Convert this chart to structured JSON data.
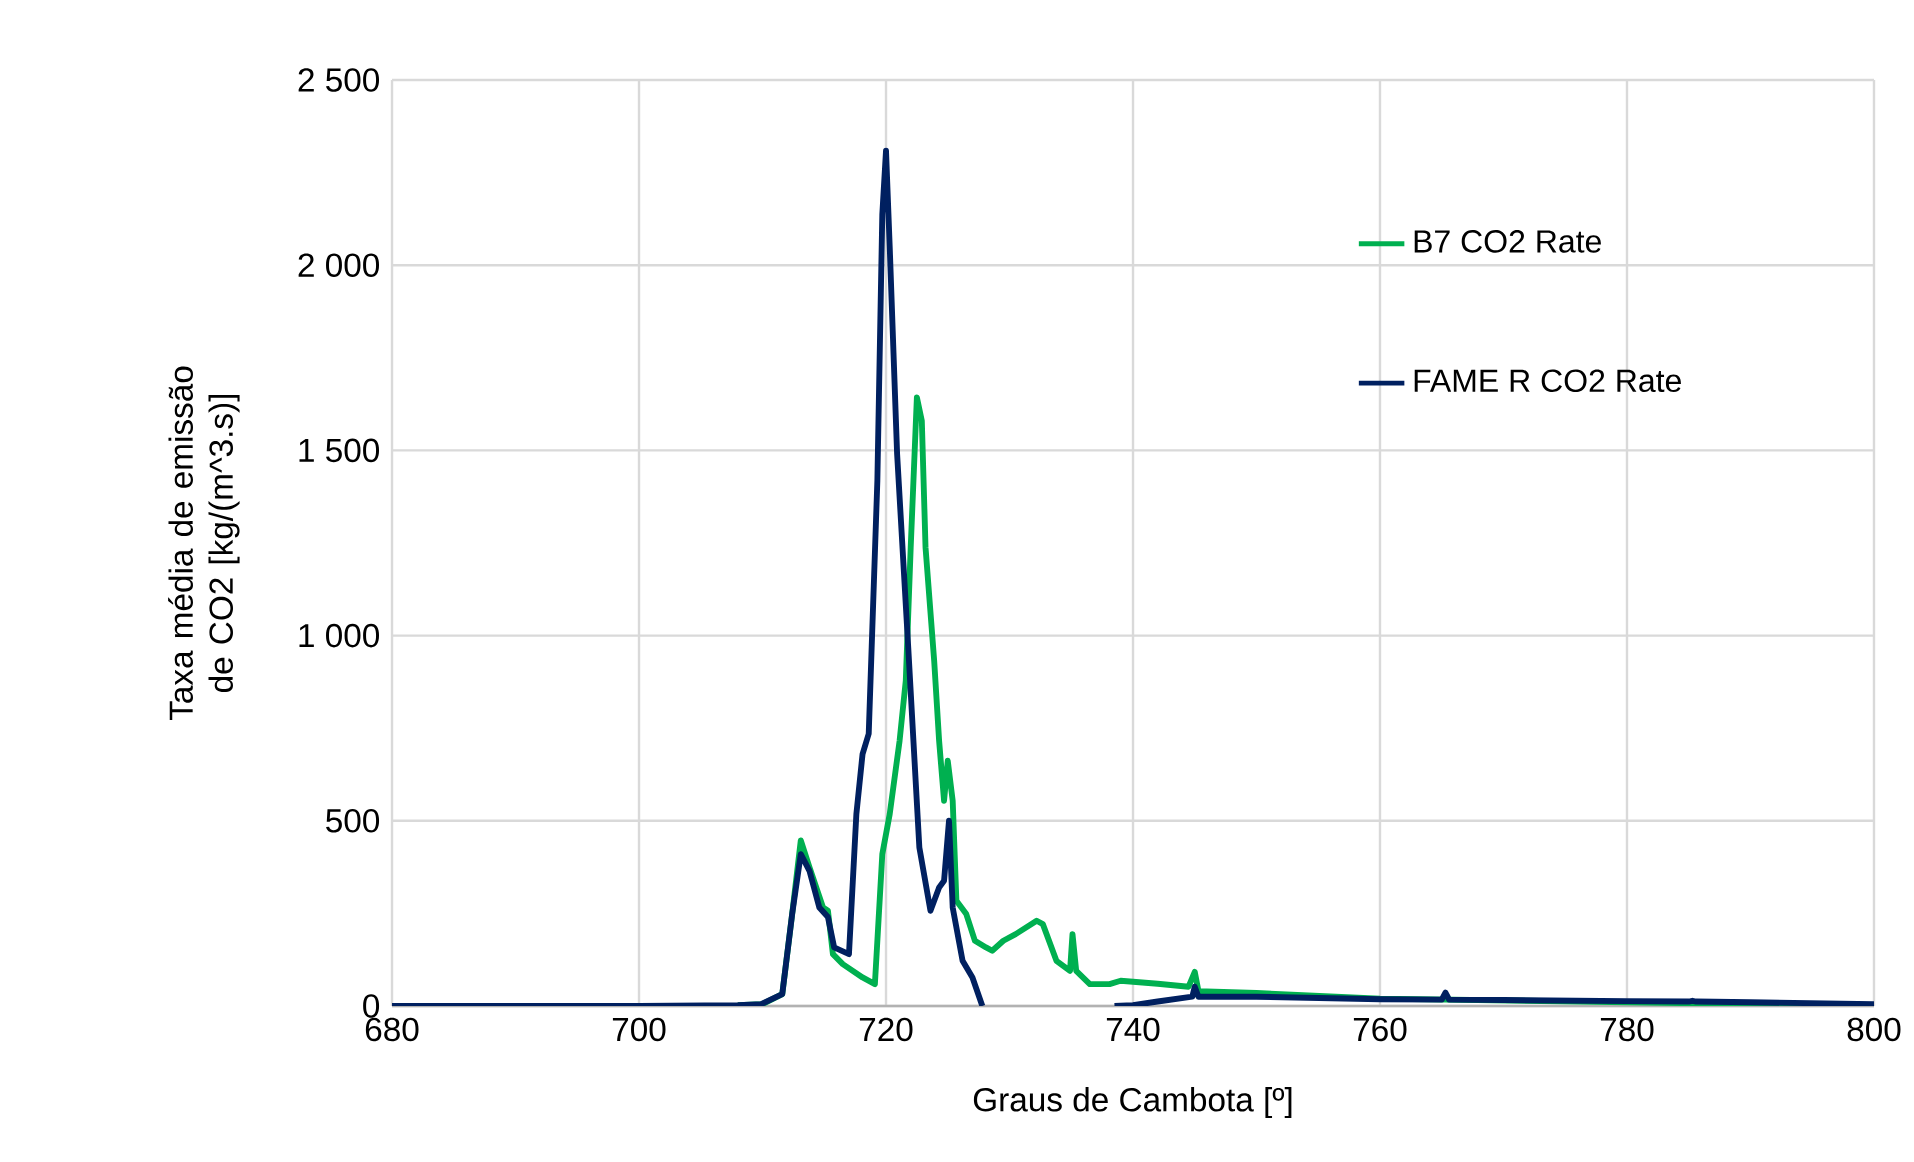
{
  "chart_data": {
    "type": "line",
    "xlabel": "Graus de Cambota [º]",
    "ylabel": "Taxa média de emissão de CO2 [kg/(m^3.s)]",
    "xlim": [
      680,
      800
    ],
    "xticks": [
      680,
      700,
      720,
      740,
      760,
      780,
      800
    ],
    "ylim": [
      0,
      2500
    ],
    "yticks": [
      0,
      500,
      {
        "value": 1000,
        "label": "1 000"
      },
      {
        "value": 1500,
        "label": "1 500"
      },
      {
        "value": 2000,
        "label": "2 000"
      },
      {
        "value": 2500,
        "label": "2 500"
      }
    ],
    "grid": true,
    "legend": "right",
    "line_style": "solid",
    "marker": "none",
    "series": [
      {
        "name": "B7 CO2 Rate",
        "color": "#00b050",
        "x": [
          708,
          710,
          711.6,
          712.4,
          713.1,
          713.8,
          714.9,
          715.3,
          715.7,
          716.5,
          718.1,
          719.1,
          719.7,
          720.3,
          721.1,
          721.6,
          722.0,
          722.5,
          722.9,
          723.2,
          723.9,
          724.3,
          724.7,
          725.0,
          725.4,
          725.7,
          726.5,
          727.2,
          728.1,
          728.6,
          729.5,
          730.5,
          732.2,
          732.7,
          733.8,
          734.9,
          735.1,
          735.4,
          736.5,
          738.1,
          739,
          742,
          744.5,
          745,
          745.3,
          750,
          760,
          770,
          780,
          790,
          800
        ],
        "values": [
          2,
          5,
          32,
          248,
          447,
          375,
          266,
          257,
          140,
          113,
          77,
          59,
          410,
          518,
          716,
          878,
          1238,
          1643,
          1580,
          1238,
          932,
          716,
          554,
          662,
          554,
          284,
          248,
          176,
          158,
          149,
          176,
          194,
          230,
          221,
          122,
          95,
          194,
          95,
          59,
          59,
          68,
          60,
          52,
          92,
          40,
          35,
          20,
          15,
          10,
          5,
          2
        ]
      },
      {
        "name": "FAME R CO2 Rate",
        "color": "#002060",
        "x": [
          680,
          700,
          708,
          709.9,
          711.6,
          712.4,
          713.1,
          713.8,
          714.6,
          715.3,
          715.8,
          717,
          717.6,
          718.1,
          718.6,
          719.3,
          719.7,
          720,
          720.3,
          720.9,
          721.8,
          722.7,
          723.6,
          724.3,
          724.7,
          725.1,
          725.4,
          726.2,
          727,
          727.8,
          733,
          738.5,
          740,
          742,
          744.8,
          745,
          745.3,
          750,
          760,
          765,
          765.3,
          765.6,
          770,
          780,
          785,
          785.3,
          785.6,
          790,
          800
        ],
        "values": [
          0,
          0,
          2,
          5,
          32,
          248,
          410,
          365,
          266,
          240,
          158,
          140,
          518,
          680,
          735,
          1418,
          2138,
          2309,
          2050,
          1490,
          968,
          428,
          257,
          320,
          338,
          500,
          266,
          122,
          77,
          0,
          null,
          0,
          2,
          12,
          25,
          52,
          25,
          25,
          18,
          17,
          36,
          17,
          16,
          13,
          12,
          14,
          12,
          10,
          5
        ]
      }
    ]
  }
}
